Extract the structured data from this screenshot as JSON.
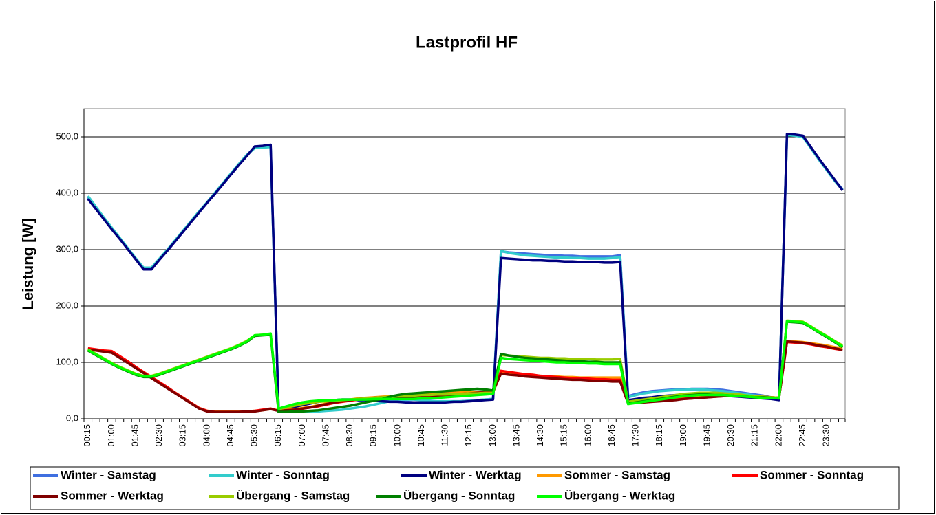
{
  "chart_data": {
    "type": "line",
    "title": "Lastprofil HF",
    "y_label": "Leistung [W]",
    "categories": [
      "00:15",
      null,
      null,
      "01:00",
      null,
      null,
      "01:45",
      null,
      null,
      "02:30",
      null,
      null,
      "03:15",
      null,
      null,
      "04:00",
      null,
      null,
      "04:45",
      null,
      null,
      "05:30",
      null,
      null,
      "06:15",
      null,
      null,
      "07:00",
      null,
      null,
      "07:45",
      null,
      null,
      "08:30",
      null,
      null,
      "09:15",
      null,
      null,
      "10:00",
      null,
      null,
      "10:45",
      null,
      null,
      "11:30",
      null,
      null,
      "12:15",
      null,
      null,
      "13:00",
      null,
      null,
      "13:45",
      null,
      null,
      "14:30",
      null,
      null,
      "15:15",
      null,
      null,
      "16:00",
      null,
      null,
      "16:45",
      null,
      null,
      "17:30",
      null,
      null,
      "18:15",
      null,
      null,
      "19:00",
      null,
      null,
      "19:45",
      null,
      null,
      "20:30",
      null,
      null,
      "21:15",
      null,
      null,
      "22:00",
      null,
      null,
      "22:45",
      null,
      null,
      "23:30",
      null,
      null
    ],
    "ylim": [
      0,
      550
    ],
    "yticks": [
      {
        "value": 0,
        "label": "0,0"
      },
      {
        "value": 100,
        "label": "100,0"
      },
      {
        "value": 200,
        "label": "200,0"
      },
      {
        "value": 300,
        "label": "300,0"
      },
      {
        "value": 400,
        "label": "400,0"
      },
      {
        "value": 500,
        "label": "500,0"
      }
    ],
    "grid": true,
    "legend": "bottom",
    "series": [
      {
        "name": "Winter - Samstag",
        "color": "#3f6fe0",
        "values": [
          393,
          374,
          356,
          338,
          320,
          302,
          284,
          267,
          267,
          283,
          299,
          316,
          333,
          350,
          367,
          383,
          400,
          417,
          434,
          451,
          467,
          481,
          482,
          483,
          16,
          19,
          22,
          25,
          28,
          30,
          32,
          33,
          34,
          34,
          33,
          33,
          32,
          31,
          31,
          30,
          30,
          29,
          29,
          29,
          29,
          30,
          30,
          31,
          32,
          33,
          34,
          35,
          297,
          295,
          294,
          293,
          292,
          291,
          290,
          290,
          289,
          289,
          288,
          288,
          288,
          288,
          288,
          290,
          40,
          44,
          47,
          49,
          50,
          51,
          52,
          52,
          53,
          53,
          53,
          52,
          51,
          49,
          47,
          45,
          43,
          41,
          38,
          35,
          503,
          503,
          501,
          481,
          461,
          442,
          423,
          407
        ]
      },
      {
        "name": "Winter - Sonntag",
        "color": "#33cccc",
        "values": [
          395,
          376,
          357,
          339,
          321,
          303,
          285,
          268,
          268,
          284,
          300,
          317,
          334,
          351,
          368,
          384,
          401,
          418,
          435,
          452,
          468,
          480,
          481,
          482,
          15,
          14,
          13,
          13,
          13,
          13,
          14,
          15,
          16,
          18,
          20,
          22,
          25,
          28,
          31,
          33,
          34,
          34,
          33,
          32,
          31,
          31,
          31,
          31,
          32,
          33,
          34,
          35,
          298,
          294,
          292,
          290,
          289,
          288,
          287,
          286,
          286,
          285,
          285,
          284,
          284,
          284,
          285,
          287,
          38,
          42,
          45,
          47,
          49,
          50,
          51,
          51,
          52,
          52,
          51,
          50,
          49,
          47,
          45,
          43,
          41,
          39,
          37,
          35,
          503,
          502,
          500,
          480,
          460,
          441,
          422,
          406
        ]
      },
      {
        "name": "Winter - Werktag",
        "color": "#000080",
        "values": [
          390,
          372,
          354,
          336,
          319,
          301,
          283,
          265,
          265,
          282,
          298,
          315,
          332,
          349,
          366,
          383,
          399,
          416,
          433,
          450,
          466,
          483,
          484,
          486,
          15,
          18,
          21,
          24,
          27,
          30,
          32,
          33,
          34,
          34,
          33,
          33,
          32,
          31,
          30,
          30,
          29,
          29,
          29,
          29,
          29,
          29,
          30,
          30,
          31,
          32,
          33,
          34,
          285,
          284,
          283,
          282,
          281,
          281,
          280,
          280,
          279,
          279,
          278,
          278,
          278,
          277,
          277,
          278,
          33,
          35,
          37,
          38,
          40,
          41,
          42,
          43,
          43,
          43,
          42,
          42,
          41,
          40,
          39,
          38,
          37,
          36,
          35,
          33,
          505,
          504,
          502,
          482,
          462,
          443,
          424,
          405
        ]
      },
      {
        "name": "Sommer - Samstag",
        "color": "#ff9900",
        "values": [
          124,
          122,
          120,
          118,
          109,
          100,
          91,
          82,
          73,
          64,
          55,
          46,
          37,
          28,
          19,
          14,
          13,
          13,
          13,
          13,
          13,
          14,
          15,
          17,
          15,
          16,
          17,
          19,
          21,
          24,
          27,
          30,
          32,
          34,
          36,
          37,
          38,
          39,
          40,
          41,
          42,
          43,
          44,
          45,
          45,
          46,
          46,
          47,
          47,
          47,
          48,
          48,
          82,
          80,
          79,
          78,
          77,
          76,
          75,
          75,
          74,
          74,
          73,
          73,
          73,
          73,
          73,
          73,
          30,
          31,
          32,
          33,
          34,
          35,
          36,
          37,
          38,
          39,
          40,
          40,
          41,
          41,
          41,
          40,
          40,
          39,
          38,
          37,
          138,
          137,
          136,
          134,
          132,
          130,
          127,
          125
        ]
      },
      {
        "name": "Sommer - Sonntag",
        "color": "#ff0000",
        "values": [
          125,
          123,
          121,
          120,
          111,
          102,
          92,
          83,
          74,
          65,
          56,
          46,
          37,
          28,
          19,
          14,
          12,
          12,
          12,
          12,
          13,
          14,
          16,
          18,
          14,
          15,
          16,
          18,
          20,
          22,
          25,
          28,
          30,
          32,
          34,
          35,
          36,
          37,
          37,
          38,
          38,
          38,
          39,
          39,
          40,
          40,
          41,
          42,
          43,
          44,
          45,
          46,
          85,
          83,
          81,
          79,
          78,
          76,
          75,
          74,
          73,
          72,
          71,
          71,
          70,
          70,
          69,
          69,
          28,
          29,
          30,
          31,
          32,
          33,
          34,
          35,
          36,
          37,
          38,
          39,
          40,
          40,
          40,
          40,
          39,
          39,
          38,
          37,
          136,
          135,
          134,
          132,
          129,
          127,
          124,
          122
        ]
      },
      {
        "name": "Sommer - Werktag",
        "color": "#800000",
        "values": [
          123,
          121,
          119,
          117,
          108,
          99,
          90,
          81,
          72,
          63,
          54,
          45,
          36,
          27,
          18,
          13,
          12,
          12,
          12,
          12,
          13,
          13,
          15,
          17,
          14,
          15,
          16,
          18,
          20,
          23,
          26,
          29,
          31,
          33,
          35,
          36,
          37,
          38,
          38,
          38,
          39,
          39,
          40,
          40,
          41,
          42,
          43,
          44,
          45,
          46,
          47,
          48,
          80,
          78,
          77,
          75,
          74,
          73,
          72,
          71,
          70,
          69,
          69,
          68,
          67,
          67,
          66,
          66,
          27,
          28,
          29,
          30,
          31,
          32,
          33,
          35,
          36,
          37,
          38,
          39,
          40,
          40,
          40,
          39,
          39,
          38,
          38,
          37,
          137,
          136,
          135,
          133,
          130,
          128,
          125,
          122
        ]
      },
      {
        "name": "Übergang - Samstag",
        "color": "#99cc00",
        "values": [
          123,
          115,
          107,
          99,
          92,
          86,
          80,
          76,
          76,
          80,
          85,
          90,
          95,
          100,
          105,
          110,
          115,
          120,
          125,
          131,
          138,
          148,
          149,
          150,
          17,
          20,
          23,
          26,
          28,
          30,
          31,
          32,
          33,
          34,
          35,
          36,
          37,
          38,
          39,
          40,
          41,
          41,
          42,
          42,
          43,
          43,
          44,
          44,
          45,
          45,
          46,
          46,
          113,
          112,
          111,
          110,
          109,
          108,
          108,
          107,
          107,
          106,
          106,
          106,
          105,
          105,
          105,
          106,
          30,
          32,
          34,
          36,
          38,
          40,
          42,
          44,
          45,
          46,
          46,
          46,
          45,
          44,
          43,
          41,
          40,
          39,
          38,
          37,
          174,
          173,
          172,
          164,
          155,
          147,
          138,
          130
        ]
      },
      {
        "name": "Übergang - Sonntag",
        "color": "#008000",
        "values": [
          121,
          113,
          105,
          97,
          90,
          84,
          78,
          74,
          74,
          78,
          83,
          88,
          93,
          98,
          103,
          108,
          113,
          118,
          123,
          129,
          136,
          147,
          148,
          149,
          12,
          12,
          13,
          13,
          14,
          15,
          17,
          19,
          21,
          23,
          26,
          29,
          32,
          35,
          39,
          42,
          44,
          45,
          46,
          47,
          48,
          49,
          50,
          51,
          52,
          53,
          52,
          50,
          115,
          112,
          110,
          108,
          107,
          106,
          105,
          104,
          103,
          102,
          102,
          101,
          101,
          100,
          100,
          100,
          27,
          29,
          31,
          33,
          35,
          37,
          39,
          41,
          42,
          43,
          43,
          42,
          42,
          41,
          40,
          39,
          38,
          38,
          37,
          36,
          172,
          171,
          170,
          162,
          153,
          145,
          136,
          127
        ]
      },
      {
        "name": "Übergang - Werktag",
        "color": "#00ff00",
        "values": [
          122,
          114,
          106,
          98,
          91,
          85,
          79,
          75,
          75,
          79,
          84,
          89,
          94,
          99,
          104,
          109,
          114,
          119,
          124,
          130,
          137,
          148,
          149,
          151,
          18,
          22,
          26,
          29,
          31,
          32,
          33,
          33,
          34,
          34,
          34,
          34,
          35,
          35,
          35,
          35,
          35,
          35,
          36,
          36,
          37,
          38,
          39,
          40,
          41,
          42,
          43,
          44,
          108,
          106,
          105,
          104,
          103,
          102,
          101,
          100,
          100,
          99,
          99,
          98,
          98,
          97,
          97,
          97,
          26,
          28,
          30,
          32,
          34,
          36,
          38,
          40,
          41,
          42,
          42,
          42,
          42,
          41,
          40,
          39,
          38,
          37,
          37,
          36,
          173,
          172,
          171,
          163,
          154,
          146,
          137,
          128
        ]
      }
    ]
  }
}
